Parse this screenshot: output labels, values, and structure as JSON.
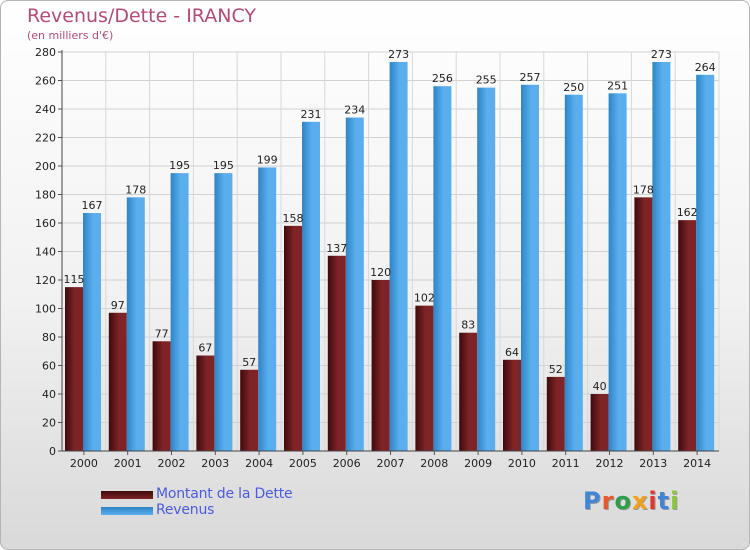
{
  "chart_data": {
    "type": "bar",
    "title": "Revenus/Dette - IRANCY",
    "subtitle": "(en milliers d'€)",
    "categories": [
      "2000",
      "2001",
      "2002",
      "2003",
      "2004",
      "2005",
      "2006",
      "2007",
      "2008",
      "2009",
      "2010",
      "2011",
      "2012",
      "2013",
      "2014"
    ],
    "series": [
      {
        "name": "Montant de la Dette",
        "color": "#7a1f22",
        "values": [
          115,
          97,
          77,
          67,
          57,
          158,
          137,
          120,
          102,
          83,
          64,
          52,
          40,
          178,
          162
        ]
      },
      {
        "name": "Revenus",
        "color": "#4aa3e6",
        "values": [
          167,
          178,
          195,
          195,
          199,
          231,
          234,
          273,
          256,
          255,
          257,
          250,
          251,
          273,
          264
        ]
      }
    ],
    "ylim": [
      0,
      280
    ],
    "yticks": [
      0,
      20,
      40,
      60,
      80,
      100,
      120,
      140,
      160,
      180,
      200,
      220,
      240,
      260,
      280
    ],
    "grid": true,
    "legend_position": "bottom-left",
    "xlabel": "",
    "ylabel": ""
  },
  "logo": {
    "text": "Proxiti"
  }
}
